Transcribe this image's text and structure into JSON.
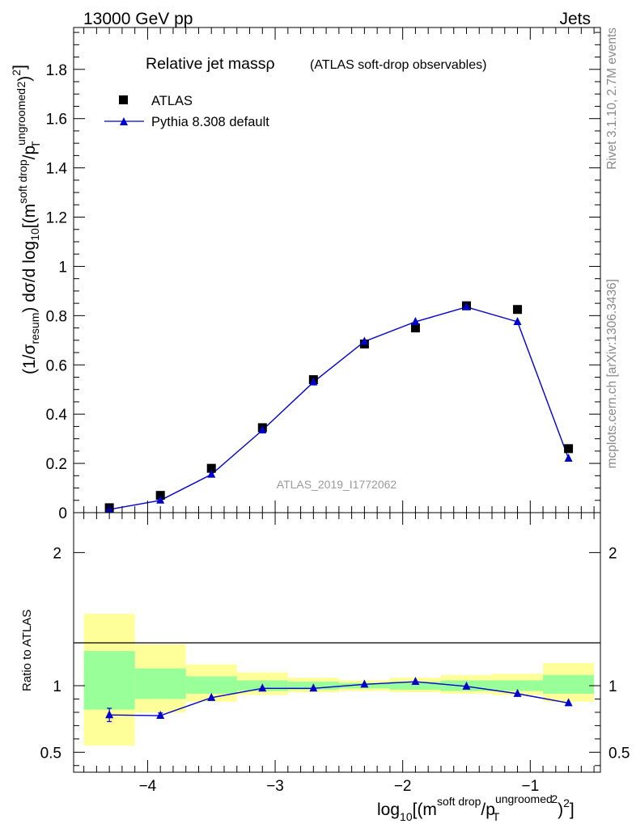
{
  "header": {
    "energy_label": "13000 GeV pp",
    "process_label": "Jets"
  },
  "side_labels": {
    "rivet": "Rivet 3.1.10,  2.7M events",
    "source": "mcplots.cern.ch [arXiv:1306.3436]"
  },
  "colors": {
    "data": "#000000",
    "mc": "#0000cc",
    "band_inner": "#99ff99",
    "band_outer": "#ffff99"
  },
  "chart_data": [
    {
      "type": "scatter",
      "title_main": "Relative jet massρ",
      "title_sub": "(ATLAS soft-drop observables)",
      "analysis_label": "ATLAS_2019_I1772062",
      "ylabel": "(1/σresum) dσ/d log10[(m^soft drop/pT^ungroomed)^2]",
      "ylim": [
        0,
        1.97
      ],
      "xlim": [
        -4.58,
        -0.45
      ],
      "yticks": [
        "0",
        "0.2",
        "0.4",
        "0.6",
        "0.8",
        "1",
        "1.2",
        "1.4",
        "1.6",
        "1.8"
      ],
      "legend": {
        "position": "top-left",
        "entries": [
          "ATLAS",
          "Pythia 8.308 default"
        ]
      },
      "x": [
        -4.3,
        -3.9,
        -3.5,
        -3.1,
        -2.7,
        -2.3,
        -1.9,
        -1.5,
        -1.1,
        -0.7
      ],
      "series": [
        {
          "name": "ATLAS",
          "marker": "square",
          "values": [
            0.02,
            0.07,
            0.18,
            0.345,
            0.54,
            0.685,
            0.75,
            0.84,
            0.825,
            0.26
          ]
        },
        {
          "name": "Pythia 8.308 default",
          "marker": "triangle",
          "values": [
            0.013,
            0.05,
            0.155,
            0.335,
            0.53,
            0.695,
            0.775,
            0.835,
            0.775,
            0.22
          ]
        }
      ]
    },
    {
      "type": "line",
      "ylabel": "Ratio to ATLAS",
      "xlabel": "log10[(m^soft drop/pT^ungroomed)^2]",
      "xlim": [
        -4.58,
        -0.45
      ],
      "ylim": [
        0.35,
        2.3
      ],
      "yticks": [
        "0.5",
        "1",
        "2"
      ],
      "xticks": [
        "−4",
        "−3",
        "−2",
        "−1"
      ],
      "bins": [
        {
          "lo": -4.5,
          "hi": -4.1,
          "inner": [
            0.82,
            1.26
          ],
          "outer": [
            0.55,
            1.54
          ]
        },
        {
          "lo": -4.1,
          "hi": -3.7,
          "inner": [
            0.9,
            1.13
          ],
          "outer": [
            0.8,
            1.31
          ]
        },
        {
          "lo": -3.7,
          "hi": -3.3,
          "inner": [
            0.94,
            1.07
          ],
          "outer": [
            0.88,
            1.16
          ]
        },
        {
          "lo": -3.3,
          "hi": -2.9,
          "inner": [
            0.96,
            1.04
          ],
          "outer": [
            0.93,
            1.1
          ]
        },
        {
          "lo": -2.9,
          "hi": -2.5,
          "inner": [
            0.97,
            1.03
          ],
          "outer": [
            0.95,
            1.06
          ]
        },
        {
          "lo": -2.5,
          "hi": -2.1,
          "inner": [
            0.98,
            1.02
          ],
          "outer": [
            0.96,
            1.04
          ]
        },
        {
          "lo": -2.1,
          "hi": -1.7,
          "inner": [
            0.97,
            1.03
          ],
          "outer": [
            0.95,
            1.06
          ]
        },
        {
          "lo": -1.7,
          "hi": -1.3,
          "inner": [
            0.96,
            1.04
          ],
          "outer": [
            0.94,
            1.08
          ]
        },
        {
          "lo": -1.3,
          "hi": -0.9,
          "inner": [
            0.96,
            1.04
          ],
          "outer": [
            0.93,
            1.09
          ]
        },
        {
          "lo": -0.9,
          "hi": -0.5,
          "inner": [
            0.94,
            1.08
          ],
          "outer": [
            0.88,
            1.17
          ]
        }
      ],
      "series": [
        {
          "name": "Pythia 8.308 default",
          "x": [
            -4.3,
            -3.9,
            -3.5,
            -3.1,
            -2.7,
            -2.3,
            -1.9,
            -1.5,
            -1.1,
            -0.7
          ],
          "values": [
            0.78,
            0.775,
            0.91,
            0.98,
            0.98,
            1.01,
            1.03,
            0.995,
            0.94,
            0.87
          ],
          "err": [
            0.05,
            0.02,
            0.01,
            0.008,
            0.006,
            0.005,
            0.006,
            0.006,
            0.008,
            0.012
          ]
        }
      ]
    }
  ]
}
